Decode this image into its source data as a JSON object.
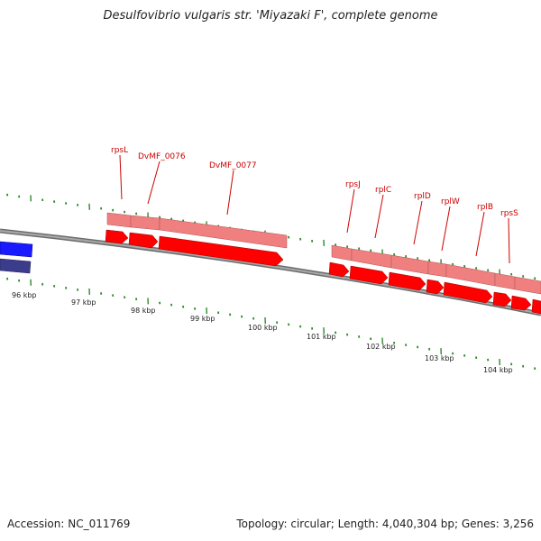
{
  "title": "Desulfovibrio vulgaris str. 'Miyazaki F', complete genome",
  "accession_text": "Accession: NC_011769",
  "topology_text": "Topology: circular; Length: 4,040,304 bp; Genes: 3,256",
  "kbp_labels": [
    "96 kbp",
    "97 kbp",
    "98 kbp",
    "99 kbp",
    "100 kbp",
    "101 kbp",
    "102 kbp",
    "103 kbp",
    "104 kbp"
  ],
  "gene_labels": [
    "rpsL",
    "DvMF_0076",
    "DvMF_0077",
    "rpsJ",
    "rplC",
    "rplD",
    "rplW",
    "rplB",
    "rpsS"
  ],
  "colors": {
    "cds_forward": "#ff0000",
    "gene_feature": "#f08080",
    "backbone": "#808080",
    "tick": "#2e8b2e",
    "label": "#cc0000",
    "blue_feature": "#1a1aff",
    "navy_feature": "#3c3c8c"
  }
}
